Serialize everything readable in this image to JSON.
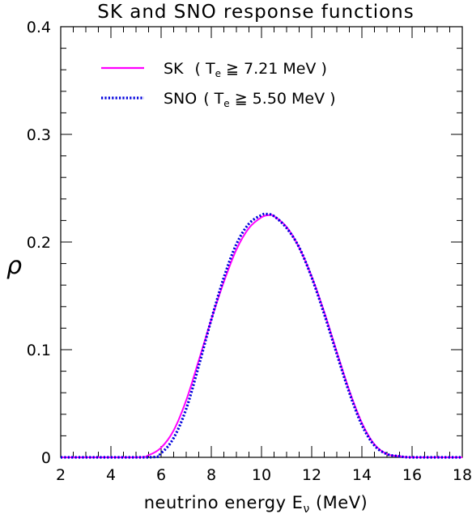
{
  "chart_data": {
    "type": "line",
    "title": "SK and SNO response functions",
    "xlabel": "neutrino energy E",
    "xlabel_subscript": "ν",
    "xlabel_unit": " (MeV)",
    "ylabel": "ρ",
    "xlim": [
      2,
      18
    ],
    "ylim": [
      0,
      0.4
    ],
    "xticks": [
      2,
      4,
      6,
      8,
      10,
      12,
      14,
      16,
      18
    ],
    "xtick_labels": [
      "2",
      "4",
      "6",
      "8",
      "10",
      "12",
      "14",
      "16",
      "18"
    ],
    "yticks": [
      0,
      0.1,
      0.2,
      0.3,
      0.4
    ],
    "ytick_labels": [
      "0",
      "0.1",
      "0.2",
      "0.3",
      "0.4"
    ],
    "grid": false,
    "legend_position": "top-left",
    "series": [
      {
        "name": "SK",
        "label_detail": "( T",
        "label_sub": "e",
        "label_rest": " ≧ 7.21 MeV )",
        "color": "#ff00ff",
        "style": "solid",
        "x": [
          2.0,
          5.0,
          5.5,
          6.0,
          6.5,
          7.0,
          7.5,
          8.0,
          8.5,
          9.0,
          9.5,
          10.0,
          10.3,
          10.5,
          11.0,
          11.5,
          12.0,
          12.5,
          13.0,
          13.5,
          14.0,
          14.5,
          15.0,
          15.5,
          16.0,
          18.0
        ],
        "y": [
          0.0,
          0.0,
          0.002,
          0.009,
          0.025,
          0.053,
          0.09,
          0.128,
          0.163,
          0.193,
          0.213,
          0.223,
          0.225,
          0.224,
          0.214,
          0.195,
          0.168,
          0.135,
          0.098,
          0.062,
          0.032,
          0.012,
          0.003,
          0.001,
          0.0,
          0.0
        ]
      },
      {
        "name": "SNO",
        "label_detail": "( T",
        "label_sub": "e",
        "label_rest": " ≧ 5.50 MeV )",
        "color": "#0000dd",
        "style": "dotted",
        "x": [
          2.0,
          5.5,
          6.0,
          6.5,
          7.0,
          7.5,
          8.0,
          8.5,
          9.0,
          9.5,
          10.0,
          10.2,
          10.5,
          11.0,
          11.5,
          12.0,
          12.5,
          13.0,
          13.5,
          14.0,
          14.5,
          15.0,
          15.5,
          16.0,
          18.0
        ],
        "y": [
          0.0,
          0.0,
          0.004,
          0.018,
          0.045,
          0.085,
          0.128,
          0.167,
          0.198,
          0.217,
          0.225,
          0.226,
          0.224,
          0.213,
          0.195,
          0.167,
          0.133,
          0.096,
          0.06,
          0.03,
          0.011,
          0.003,
          0.001,
          0.0,
          0.0
        ]
      }
    ]
  }
}
